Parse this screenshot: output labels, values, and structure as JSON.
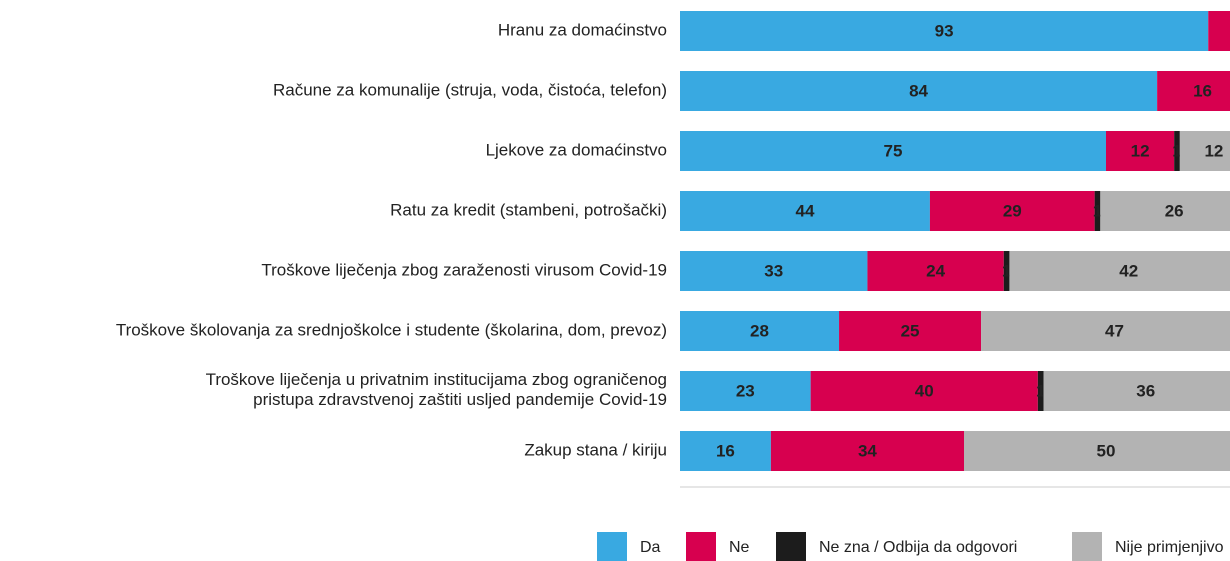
{
  "chart_data": {
    "type": "stacked-bar-horizontal",
    "categories": [
      "Hranu za domaćinstvo",
      "Račune za komunalije (struja, voda, čistoća, telefon)",
      "Ljekove za domaćinstvo",
      "Ratu za kredit (stambeni, potrošački)",
      "Troškove liječenja zbog zaraženosti virusom Covid-19",
      "Troškove školovanja za srednjoškolce i studente (školarina, dom, prevoz)",
      "Troškove liječenja u privatnim institucijama zbog ograničenog\npristupa zdravstvenoj zaštiti usljed pandemije Covid-19",
      "Zakup stana / kiriju"
    ],
    "series": [
      {
        "name": "Da",
        "color": "#39a9e1",
        "values": [
          93,
          84,
          75,
          44,
          33,
          28,
          23,
          16
        ]
      },
      {
        "name": "Ne",
        "color": "#d7004f",
        "values": [
          7,
          16,
          12,
          29,
          24,
          25,
          40,
          34
        ]
      },
      {
        "name": "Ne zna / Odbija da odgovori",
        "color": "#1c1c1c",
        "values": [
          0,
          0,
          1,
          1,
          1,
          0,
          1,
          0
        ]
      },
      {
        "name": "Nije primjenjivo",
        "color": "#b3b3b3",
        "values": [
          0,
          0,
          12,
          26,
          42,
          47,
          36,
          50
        ]
      }
    ],
    "xlim": [
      0,
      100
    ]
  }
}
